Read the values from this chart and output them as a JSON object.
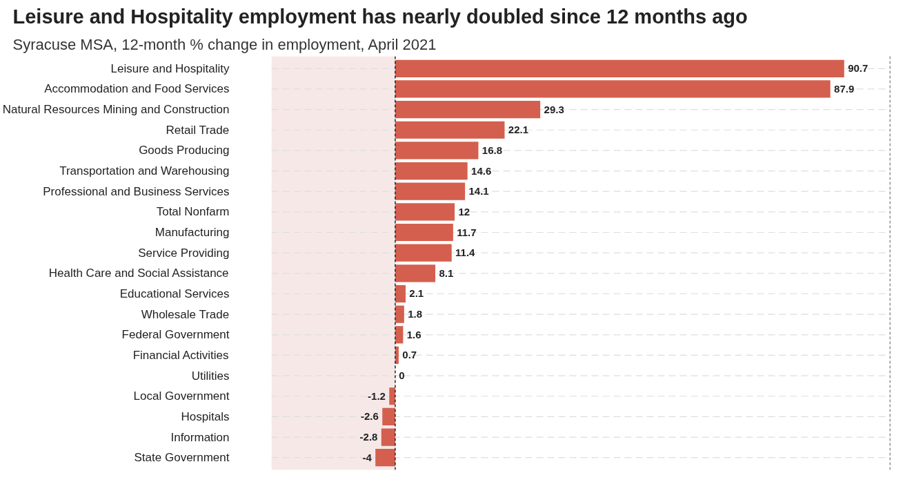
{
  "chart_data": {
    "type": "bar",
    "orientation": "horizontal",
    "title": "Leisure and Hospitality employment has nearly doubled since 12 months ago",
    "subtitle": "Syracuse MSA, 12-month % change in employment, April 2021",
    "categories": [
      "Leisure and Hospitality",
      "Accommodation and Food Services",
      "Natural Resources Mining and Construction",
      "Retail Trade",
      "Goods Producing",
      "Transportation and Warehousing",
      "Professional and Business Services",
      "Total Nonfarm",
      "Manufacturing",
      "Service Providing",
      "Health Care and Social Assistance",
      "Educational Services",
      "Wholesale Trade",
      "Federal Government",
      "Financial Activities",
      "Utilities",
      "Local Government",
      "Hospitals",
      "Information",
      "State Government"
    ],
    "values": [
      90.7,
      87.9,
      29.3,
      22.1,
      16.8,
      14.6,
      14.1,
      12,
      11.7,
      11.4,
      8.1,
      2.1,
      1.8,
      1.6,
      0.7,
      0,
      -1.2,
      -2.6,
      -2.8,
      -4
    ],
    "color": "#d45f4e",
    "xlim": [
      -25,
      100
    ],
    "tick_labels": "y",
    "data_labels": true,
    "grid": "y",
    "bands": [
      {
        "axis": "x",
        "from": -25,
        "to": 0,
        "color": "#f7e8e8"
      }
    ],
    "ref_lines": [
      {
        "axis": "x",
        "value": 0,
        "color": "#222222",
        "line_style": "dashed"
      },
      {
        "axis": "x",
        "value": 100,
        "color": "#222222",
        "line_style": "dashed"
      }
    ]
  }
}
